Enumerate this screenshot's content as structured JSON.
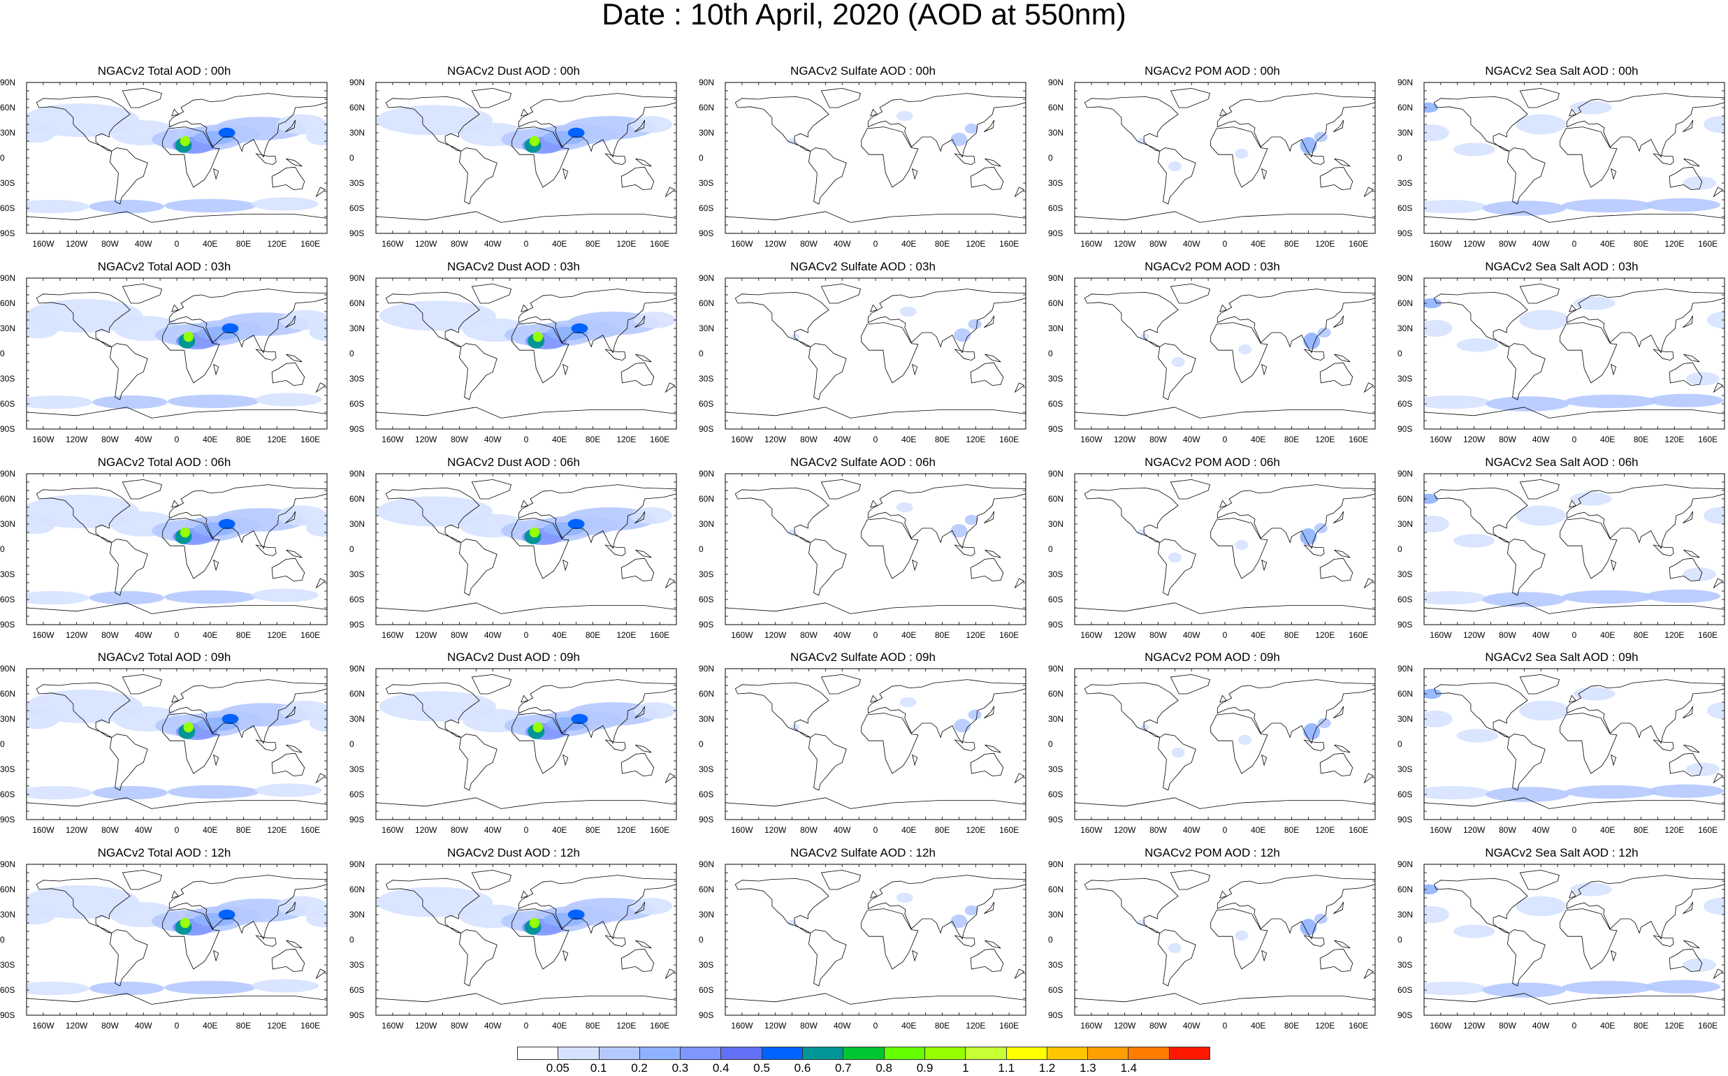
{
  "title": "Date : 10th April, 2020 (AOD at 550nm)",
  "lat_labels": [
    "90N",
    "60N",
    "30N",
    "0",
    "30S",
    "60S",
    "90S"
  ],
  "lon_labels": [
    "160W",
    "120W",
    "80W",
    "40W",
    "0",
    "40E",
    "80E",
    "120E",
    "160E"
  ],
  "rows": [
    {
      "titles": [
        "NGACv2 Total AOD : 00h",
        "NGACv2 Dust AOD : 00h",
        "NGACv2 Sulfate AOD : 00h",
        "NGACv2 POM AOD : 00h",
        "NGACv2 Sea Salt AOD : 00h"
      ]
    },
    {
      "titles": [
        "NGACv2 Total AOD : 03h",
        "NGACv2 Dust AOD : 03h",
        "NGACv2 Sulfate AOD : 03h",
        "NGACv2 POM AOD : 03h",
        "NGACv2 Sea Salt AOD : 03h"
      ]
    },
    {
      "titles": [
        "NGACv2 Total AOD : 06h",
        "NGACv2 Dust AOD : 06h",
        "NGACv2 Sulfate AOD : 06h",
        "NGACv2 POM AOD : 06h",
        "NGACv2 Sea Salt AOD : 06h"
      ]
    },
    {
      "titles": [
        "NGACv2 Total AOD : 09h",
        "NGACv2 Dust AOD : 09h",
        "NGACv2 Sulfate AOD : 09h",
        "NGACv2 POM AOD : 09h",
        "NGACv2 Sea Salt  AOD : 09h"
      ]
    },
    {
      "titles": [
        "NGACv2 Total AOD  : 12h",
        "NGACv2 Dust AOD : 12h",
        "NGACv2 Sulfate AOD : 12h",
        "NGACv2 POM  AOD : 12h",
        "NGACv2 Sea Salt AOD : 12h"
      ]
    }
  ],
  "colorbar": {
    "labels": [
      "0.05",
      "0.1",
      "0.2",
      "0.3",
      "0.4",
      "0.5",
      "0.6",
      "0.7",
      "0.8",
      "0.9",
      "1",
      "1.1",
      "1.2",
      "1.3",
      "1.4"
    ],
    "colors": [
      "#ffffff",
      "#d6e2ff",
      "#b5c9ff",
      "#8eb2ff",
      "#7f96ff",
      "#6370f8",
      "#0063ff",
      "#009696",
      "#00c633",
      "#63ff00",
      "#96ff00",
      "#c6ff33",
      "#ffff00",
      "#ffc600",
      "#ffa000",
      "#ff7c00",
      "#ff1900"
    ]
  }
}
